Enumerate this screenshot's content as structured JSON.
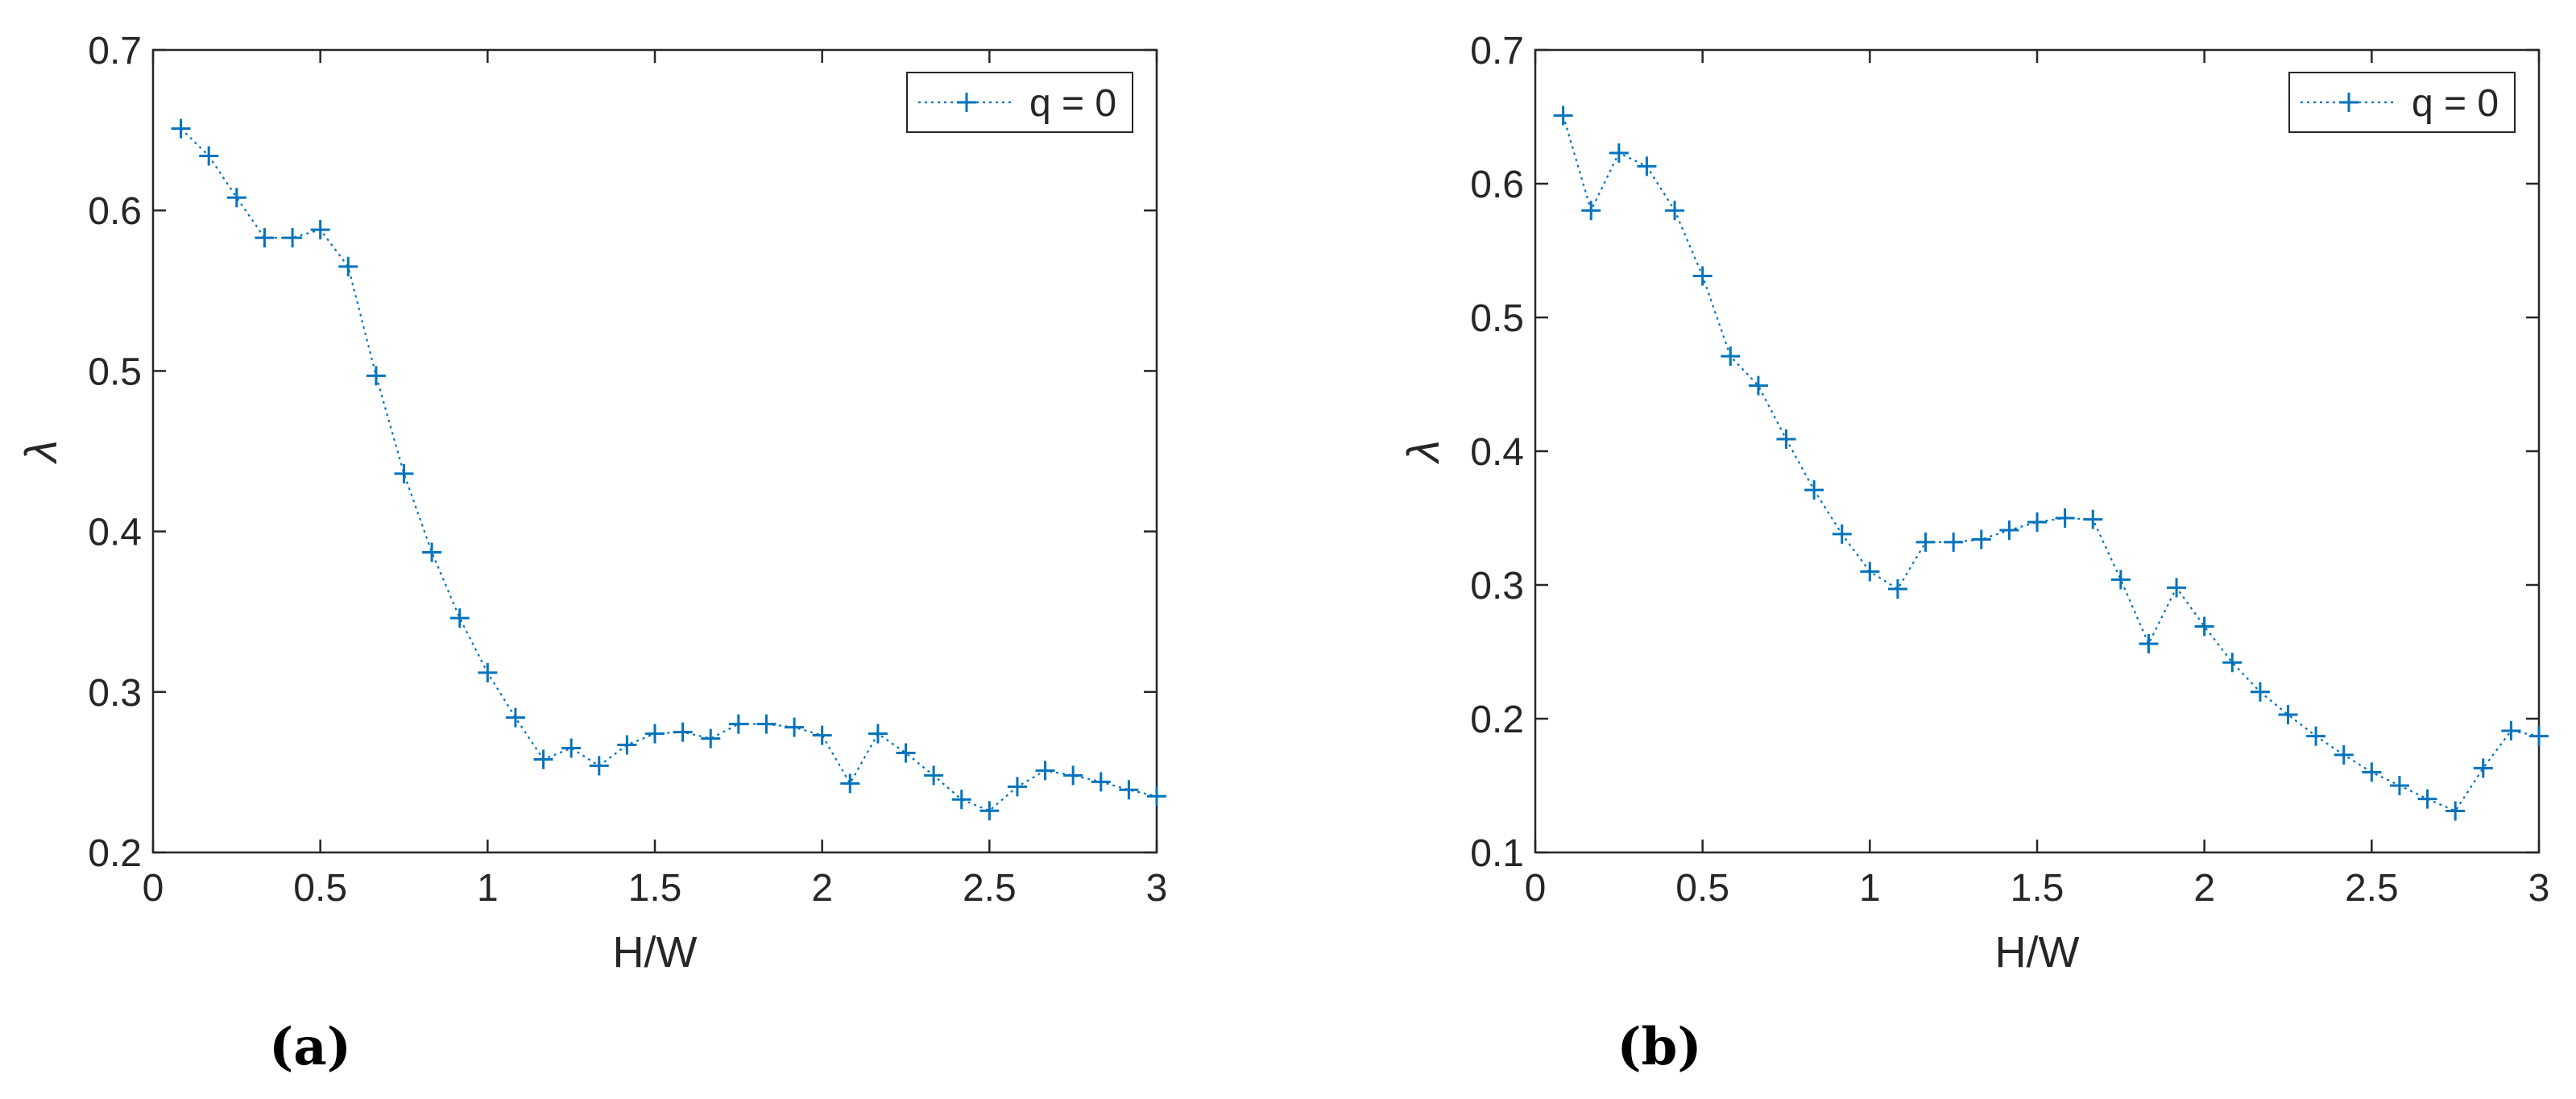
{
  "chart_data": [
    {
      "type": "line",
      "panel_label": "(a)",
      "xlabel": "H/W",
      "ylabel": "λ",
      "xlim": [
        0,
        3
      ],
      "ylim": [
        0.2,
        0.7
      ],
      "xticks": [
        0,
        0.5,
        1,
        1.5,
        2,
        2.5,
        3
      ],
      "xtick_labels": [
        "0",
        "0.5",
        "1",
        "1.5",
        "2",
        "2.5",
        "3"
      ],
      "yticks": [
        0.2,
        0.3,
        0.4,
        0.5,
        0.6,
        0.7
      ],
      "ytick_labels": [
        "0.2",
        "0.3",
        "0.4",
        "0.5",
        "0.6",
        "0.7"
      ],
      "grid": false,
      "legend_position": "top-right",
      "series": [
        {
          "name": "q = 0",
          "color": "#0072BD",
          "marker": "+",
          "line_style": "dotted",
          "x": [
            0.0833,
            0.1667,
            0.25,
            0.3333,
            0.4167,
            0.5,
            0.5833,
            0.6667,
            0.75,
            0.8333,
            0.9167,
            1.0,
            1.0833,
            1.1667,
            1.25,
            1.3333,
            1.4167,
            1.5,
            1.5833,
            1.6667,
            1.75,
            1.8333,
            1.9167,
            2.0,
            2.0833,
            2.1667,
            2.25,
            2.3333,
            2.4167,
            2.5,
            2.5833,
            2.6667,
            2.75,
            2.8333,
            2.9167,
            3.0
          ],
          "y": [
            0.651,
            0.634,
            0.608,
            0.583,
            0.583,
            0.588,
            0.565,
            0.497,
            0.436,
            0.387,
            0.346,
            0.312,
            0.284,
            0.258,
            0.265,
            0.254,
            0.267,
            0.274,
            0.275,
            0.271,
            0.28,
            0.28,
            0.278,
            0.273,
            0.243,
            0.274,
            0.262,
            0.248,
            0.233,
            0.226,
            0.241,
            0.251,
            0.248,
            0.244,
            0.239,
            0.235
          ]
        }
      ]
    },
    {
      "type": "line",
      "panel_label": "(b)",
      "xlabel": "H/W",
      "ylabel": "λ",
      "xlim": [
        0,
        3
      ],
      "ylim": [
        0.1,
        0.7
      ],
      "xticks": [
        0,
        0.5,
        1,
        1.5,
        2,
        2.5,
        3
      ],
      "xtick_labels": [
        "0",
        "0.5",
        "1",
        "1.5",
        "2",
        "2.5",
        "3"
      ],
      "yticks": [
        0.1,
        0.2,
        0.3,
        0.4,
        0.5,
        0.6,
        0.7
      ],
      "ytick_labels": [
        "0.1",
        "0.2",
        "0.3",
        "0.4",
        "0.5",
        "0.6",
        "0.7"
      ],
      "grid": false,
      "legend_position": "top-right",
      "series": [
        {
          "name": "q = 0",
          "color": "#0072BD",
          "marker": "+",
          "line_style": "dotted",
          "x": [
            0.0833,
            0.1667,
            0.25,
            0.3333,
            0.4167,
            0.5,
            0.5833,
            0.6667,
            0.75,
            0.8333,
            0.9167,
            1.0,
            1.0833,
            1.1667,
            1.25,
            1.3333,
            1.4167,
            1.5,
            1.5833,
            1.6667,
            1.75,
            1.8333,
            1.9167,
            2.0,
            2.0833,
            2.1667,
            2.25,
            2.3333,
            2.4167,
            2.5,
            2.5833,
            2.6667,
            2.75,
            2.8333,
            2.9167,
            3.0
          ],
          "y": [
            0.651,
            0.58,
            0.623,
            0.613,
            0.58,
            0.531,
            0.471,
            0.449,
            0.409,
            0.371,
            0.338,
            0.31,
            0.297,
            0.332,
            0.332,
            0.334,
            0.341,
            0.347,
            0.35,
            0.349,
            0.304,
            0.256,
            0.298,
            0.269,
            0.242,
            0.22,
            0.203,
            0.187,
            0.173,
            0.16,
            0.15,
            0.14,
            0.131,
            0.163,
            0.191,
            0.187
          ]
        }
      ]
    }
  ]
}
